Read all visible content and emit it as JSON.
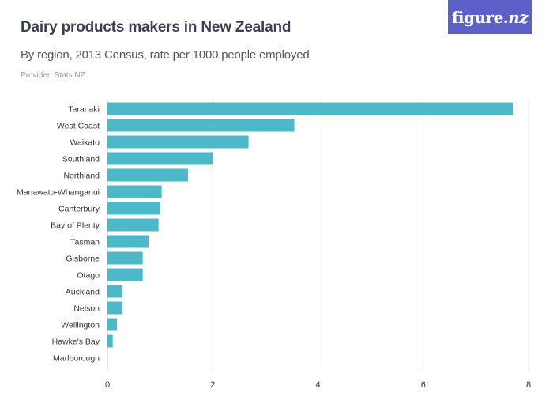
{
  "header": {
    "title": "Dairy products makers in New Zealand",
    "subtitle": "By region, 2013 Census, rate per 1000 people employed",
    "provider": "Provider: Stats NZ",
    "logo_main": "figure.",
    "logo_accent": "nz"
  },
  "colors": {
    "bar": "#4db8c7",
    "grid": "#e3e3e3",
    "axis": "#cfcfcf",
    "logo_bg": "#5b5fc7"
  },
  "chart_data": {
    "type": "bar",
    "orientation": "horizontal",
    "title": "Dairy products makers in New Zealand",
    "subtitle": "By region, 2013 Census, rate per 1000 people employed",
    "categories": [
      "Taranaki",
      "West Coast",
      "Waikato",
      "Southland",
      "Northland",
      "Manawatu-Whanganui",
      "Canterbury",
      "Bay of Plenty",
      "Tasman",
      "Gisborne",
      "Otago",
      "Auckland",
      "Nelson",
      "Wellington",
      "Hawke's Bay",
      "Marlborough"
    ],
    "values": [
      7.7,
      3.55,
      2.68,
      2.0,
      1.53,
      1.03,
      1.0,
      0.97,
      0.78,
      0.67,
      0.67,
      0.28,
      0.28,
      0.18,
      0.1,
      0.0
    ],
    "xlim": [
      0,
      8
    ],
    "xticks": [
      0,
      2,
      4,
      6,
      8
    ],
    "xlabel": "",
    "ylabel": "",
    "grid": "vertical",
    "legend": "none"
  }
}
